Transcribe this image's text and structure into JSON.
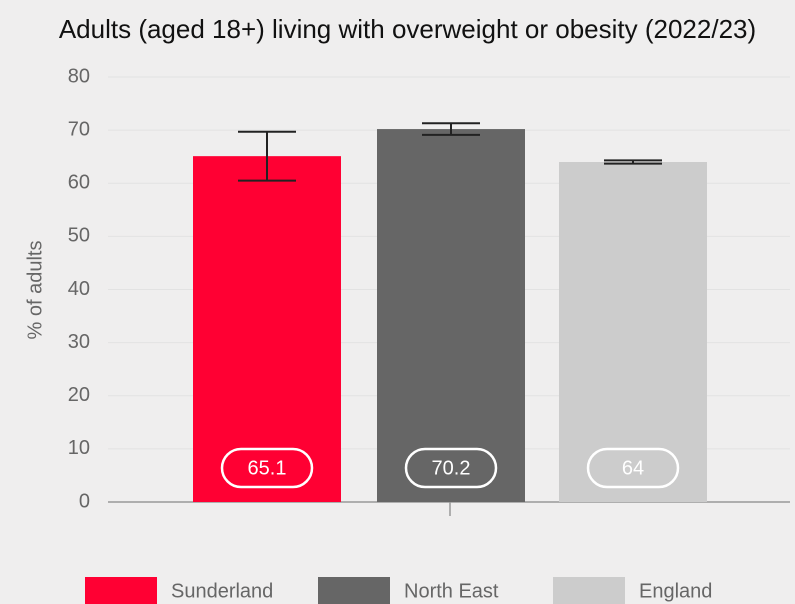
{
  "chart_data": {
    "type": "bar",
    "title": "Adults (aged 18+) living with overweight or obesity (2022/23)",
    "y_label": "% of adults",
    "categories": [
      "Sunderland",
      "North East",
      "England"
    ],
    "values": [
      65.1,
      70.2,
      64
    ],
    "lower": [
      60.5,
      69.1,
      63.7
    ],
    "upper": [
      69.7,
      71.3,
      64.3
    ],
    "colors": [
      "#ff0033",
      "#666666",
      "#cccccc"
    ],
    "ylim": [
      0,
      80
    ],
    "yticks": [
      0,
      10,
      20,
      30,
      40,
      50,
      60,
      70,
      80
    ],
    "grid": true
  }
}
